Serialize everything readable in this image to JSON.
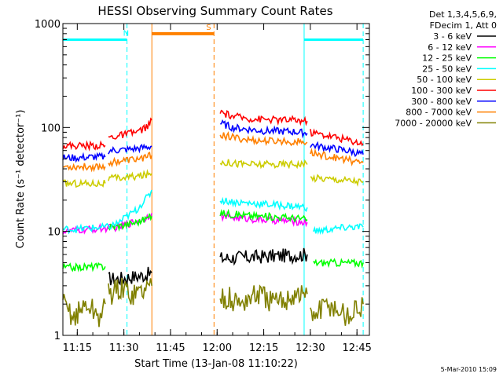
{
  "chart_data": {
    "type": "line",
    "title": "HESSI Observing Summary Count Rates",
    "xlabel": "Start Time (13-Jan-08 11:10:22)",
    "ylabel": "Count Rate (s⁻¹ detector⁻¹)",
    "y_scale": "log",
    "ylim": [
      1,
      1000
    ],
    "xlim": [
      "11:10:22",
      "12:49:00"
    ],
    "x_ticks": [
      "11:15",
      "11:30",
      "11:45",
      "12:00",
      "12:15",
      "12:30",
      "12:45"
    ],
    "y_ticks": [
      "1",
      "10",
      "100",
      "1000"
    ],
    "legend_placement": "outside-right",
    "legend_header": [
      "Det 1,3,4,5,6,9,",
      "FDecim 1, Att 0"
    ],
    "series": [
      {
        "name": "3 - 6 keV",
        "color": "#000000",
        "segments": [
          {
            "x": [
              "11:25",
              "11:28",
              "11:31",
              "11:34",
              "11:37",
              "11:39"
            ],
            "y": [
              3.5,
              3.5,
              3.6,
              3.7,
              3.8,
              4.0
            ]
          },
          {
            "x": [
              "12:01",
              "12:07",
              "12:13",
              "12:19",
              "12:25",
              "12:29"
            ],
            "y": [
              5.5,
              5.6,
              5.7,
              5.8,
              5.9,
              6.0
            ]
          }
        ]
      },
      {
        "name": "6 - 12 keV",
        "color": "#ff00ff",
        "segments": [
          {
            "x": [
              "11:10:22",
              "11:15",
              "11:20",
              "11:25",
              "11:28",
              "11:32",
              "11:36",
              "11:39"
            ],
            "y": [
              10,
              10.2,
              10.5,
              10.8,
              11,
              12,
              13,
              15
            ]
          },
          {
            "x": [
              "12:01",
              "12:07",
              "12:13",
              "12:19",
              "12:25",
              "12:29"
            ],
            "y": [
              14,
              13.5,
              13,
              12.8,
              12.5,
              12.2
            ]
          }
        ]
      },
      {
        "name": "12 - 25 keV",
        "color": "#00ff00",
        "segments": [
          {
            "x": [
              "11:10:22",
              "11:15",
              "11:20",
              "11:24"
            ],
            "y": [
              4.5,
              4.5,
              4.6,
              4.6
            ]
          },
          {
            "x": [
              "11:25",
              "11:30",
              "11:35",
              "11:39"
            ],
            "y": [
              11,
              11.5,
              12.5,
              14
            ]
          },
          {
            "x": [
              "12:01",
              "12:07",
              "12:13",
              "12:19",
              "12:25",
              "12:29"
            ],
            "y": [
              15,
              14.5,
              14,
              13.8,
              13.5,
              13
            ]
          },
          {
            "x": [
              "12:31",
              "12:37",
              "12:43",
              "12:47"
            ],
            "y": [
              5,
              5,
              5,
              5
            ]
          }
        ]
      },
      {
        "name": "25 - 50 keV",
        "color": "#00ffff",
        "segments": [
          {
            "x": [
              "11:10:22",
              "11:15",
              "11:20",
              "11:25",
              "11:28",
              "11:31",
              "11:34",
              "11:36",
              "11:38",
              "11:39"
            ],
            "y": [
              10.5,
              10.5,
              10.8,
              11,
              12,
              14,
              16,
              19,
              22,
              25
            ]
          },
          {
            "x": [
              "12:01",
              "12:07",
              "12:13",
              "12:19",
              "12:25",
              "12:29"
            ],
            "y": [
              20,
              19,
              18.5,
              18,
              17.5,
              17
            ]
          },
          {
            "x": [
              "12:31",
              "12:37",
              "12:43",
              "12:47"
            ],
            "y": [
              10,
              10.5,
              11,
              11
            ]
          }
        ]
      },
      {
        "name": "50 - 100 keV",
        "color": "#cccc00",
        "segments": [
          {
            "x": [
              "11:10:22",
              "11:15",
              "11:20",
              "11:24"
            ],
            "y": [
              29,
              29,
              29,
              29
            ]
          },
          {
            "x": [
              "11:25",
              "11:30",
              "11:35",
              "11:39"
            ],
            "y": [
              32,
              33,
              34,
              36
            ]
          },
          {
            "x": [
              "12:01",
              "12:07",
              "12:13",
              "12:19",
              "12:25",
              "12:29"
            ],
            "y": [
              47,
              45,
              44,
              44,
              45,
              44
            ]
          },
          {
            "x": [
              "12:30",
              "12:37",
              "12:43",
              "12:47"
            ],
            "y": [
              33,
              32,
              31,
              30
            ]
          }
        ]
      },
      {
        "name": "100 - 300 keV",
        "color": "#ff0000",
        "segments": [
          {
            "x": [
              "11:10:22",
              "11:15",
              "11:20",
              "11:24"
            ],
            "y": [
              67,
              67,
              67,
              67
            ]
          },
          {
            "x": [
              "11:25",
              "11:30",
              "11:35",
              "11:38",
              "11:39"
            ],
            "y": [
              80,
              85,
              92,
              105,
              118
            ]
          },
          {
            "x": [
              "12:01",
              "12:05",
              "12:10",
              "12:15",
              "12:20",
              "12:25",
              "12:29"
            ],
            "y": [
              140,
              128,
              122,
              120,
              118,
              118,
              115
            ]
          },
          {
            "x": [
              "12:30",
              "12:37",
              "12:43",
              "12:47"
            ],
            "y": [
              90,
              82,
              75,
              70
            ]
          }
        ]
      },
      {
        "name": "300 - 800 keV",
        "color": "#0000ff",
        "segments": [
          {
            "x": [
              "11:10:22",
              "11:15",
              "11:20",
              "11:24"
            ],
            "y": [
              51,
              51,
              52,
              52
            ]
          },
          {
            "x": [
              "11:25",
              "11:30",
              "11:35",
              "11:39"
            ],
            "y": [
              60,
              61,
              63,
              66
            ]
          },
          {
            "x": [
              "12:01",
              "12:05",
              "12:10",
              "12:15",
              "12:20",
              "12:25",
              "12:29"
            ],
            "y": [
              110,
              100,
              96,
              93,
              92,
              91,
              88
            ]
          },
          {
            "x": [
              "12:30",
              "12:37",
              "12:43",
              "12:47"
            ],
            "y": [
              68,
              63,
              59,
              55
            ]
          }
        ]
      },
      {
        "name": "800 - 7000 keV",
        "color": "#ff8000",
        "segments": [
          {
            "x": [
              "11:10:22",
              "11:15",
              "11:20",
              "11:24"
            ],
            "y": [
              42,
              42,
              42,
              42
            ]
          },
          {
            "x": [
              "11:25",
              "11:30",
              "11:35",
              "11:39"
            ],
            "y": [
              46,
              48,
              50,
              54
            ]
          },
          {
            "x": [
              "12:01",
              "12:05",
              "12:10",
              "12:15",
              "12:20",
              "12:25",
              "12:29"
            ],
            "y": [
              85,
              80,
              76,
              74,
              74,
              73,
              72
            ]
          },
          {
            "x": [
              "12:30",
              "12:37",
              "12:43",
              "12:47"
            ],
            "y": [
              57,
              52,
              48,
              46
            ]
          }
        ]
      },
      {
        "name": "7000 - 20000 keV",
        "color": "#808000",
        "segments": [
          {
            "x": [
              "11:10:22",
              "11:14",
              "11:18",
              "11:22",
              "11:24"
            ],
            "y": [
              2,
              1.5,
              2,
              1.5,
              2
            ]
          },
          {
            "x": [
              "11:25",
              "11:29",
              "11:33",
              "11:37",
              "11:39"
            ],
            "y": [
              2.5,
              2.8,
              2.5,
              2.8,
              3
            ]
          },
          {
            "x": [
              "12:01",
              "12:07",
              "12:13",
              "12:19",
              "12:25",
              "12:29"
            ],
            "y": [
              2.5,
              2,
              2.5,
              2,
              2.5,
              2.5
            ]
          },
          {
            "x": [
              "12:30",
              "12:36",
              "12:42",
              "12:47"
            ],
            "y": [
              1.5,
              2,
              1.5,
              2
            ]
          }
        ]
      }
    ],
    "flags": [
      {
        "label": "N",
        "color": "#00ffff",
        "level": 700,
        "bars": [
          [
            "11:10:22",
            "11:31"
          ],
          [
            "12:28",
            "12:47"
          ]
        ]
      },
      {
        "label": "S",
        "color": "#ff8000",
        "level": 800,
        "bars": [
          [
            "11:39",
            "11:59"
          ]
        ]
      }
    ],
    "vertical_markers": [
      {
        "x": "11:31",
        "color": "#00ffff",
        "style": "dashed"
      },
      {
        "x": "12:28",
        "color": "#00ffff",
        "style": "solid"
      },
      {
        "x": "12:47",
        "color": "#00ffff",
        "style": "dashed"
      },
      {
        "x": "11:39",
        "color": "#ff8000",
        "style": "solid"
      },
      {
        "x": "11:59",
        "color": "#ff8000",
        "style": "dashed"
      }
    ]
  },
  "footer": {
    "timestamp": "5-Mar-2010 15:09"
  }
}
